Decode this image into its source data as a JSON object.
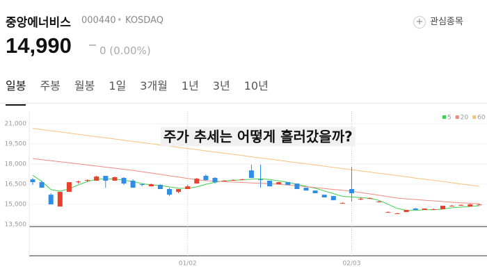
{
  "header": {
    "name": "중앙에너비스",
    "code": "000440",
    "market": "KOSDAQ",
    "watchlist": "관심종목",
    "price": "14,990",
    "change": "0 (0.00%)"
  },
  "tabs": [
    "일봉",
    "주봉",
    "월봉",
    "1일",
    "3개월",
    "1년",
    "3년",
    "10년"
  ],
  "chart_data": {
    "type": "candlestick",
    "annotation": "주가 추세는 어떻게 흘러갔을까?",
    "categories": [
      null,
      null,
      null,
      null,
      null,
      null,
      null,
      null,
      null,
      null,
      null,
      null,
      null,
      null,
      null,
      null,
      null,
      "01/02",
      null,
      null,
      null,
      null,
      null,
      null,
      null,
      null,
      null,
      null,
      null,
      null,
      null,
      null,
      null,
      null,
      null,
      "02/03",
      null,
      null,
      null,
      null,
      null,
      null,
      null,
      null,
      null,
      null,
      null,
      null,
      null,
      null
    ],
    "open": [
      16860,
      16650,
      15720,
      14840,
      15930,
      16650,
      16760,
      16760,
      17120,
      16760,
      16970,
      16760,
      16500,
      16340,
      16450,
      16140,
      15930,
      16140,
      16550,
      17120,
      16970,
      16760,
      16760,
      16860,
      17530,
      16860,
      16760,
      16500,
      16650,
      16550,
      16240,
      16030,
      15720,
      15620,
      15100,
      16140,
      15410,
      15460,
      15210,
      14430,
      14330,
      14430,
      14690,
      14590,
      14640,
      14640,
      14900,
      14950,
      14840,
      14990
    ],
    "high": [
      16970,
      16760,
      15830,
      15930,
      16650,
      16760,
      16860,
      17120,
      17120,
      17070,
      17020,
      16860,
      16550,
      16550,
      16500,
      16240,
      16140,
      16450,
      16970,
      17230,
      17020,
      16810,
      16860,
      16910,
      17950,
      17950,
      16760,
      16650,
      16650,
      16550,
      16240,
      16030,
      15720,
      15620,
      15150,
      17790,
      15520,
      15520,
      15260,
      14480,
      14380,
      14590,
      14740,
      14690,
      14690,
      14900,
      14950,
      15000,
      15050,
      15050
    ],
    "low": [
      16450,
      16240,
      15000,
      14840,
      15930,
      16550,
      16650,
      16760,
      16240,
      16760,
      16450,
      16240,
      16340,
      16340,
      16140,
      15620,
      15830,
      16140,
      16550,
      16760,
      16550,
      16700,
      16760,
      16810,
      16970,
      16240,
      16340,
      16500,
      16450,
      16140,
      16030,
      15830,
      15520,
      15310,
      15050,
      15210,
      15310,
      15410,
      15150,
      14380,
      14280,
      14430,
      14590,
      14590,
      14590,
      14640,
      14850,
      14900,
      14840,
      14950
    ],
    "close": [
      16650,
      16240,
      15000,
      15930,
      16650,
      16700,
      16810,
      17070,
      16760,
      17020,
      16550,
      16240,
      16450,
      16500,
      16140,
      15720,
      16140,
      16340,
      16910,
      16810,
      16650,
      16760,
      16810,
      16860,
      16970,
      16810,
      16340,
      16650,
      16450,
      16140,
      16030,
      15830,
      15520,
      15310,
      15100,
      15830,
      15410,
      15460,
      15210,
      14430,
      14330,
      14590,
      14590,
      14690,
      14640,
      14900,
      14900,
      14950,
      15000,
      14990
    ],
    "up_color": "#e8412c",
    "down_color": "#2f8de4",
    "series": [
      {
        "name": "5",
        "color": "#3ccf4e",
        "values": [
          17170,
          16700,
          16100,
          15980,
          16150,
          16450,
          16700,
          16860,
          16900,
          16880,
          16800,
          16700,
          16550,
          16450,
          16400,
          16300,
          16200,
          16200,
          16300,
          16500,
          16650,
          16750,
          16800,
          16830,
          16880,
          16900,
          16850,
          16750,
          16650,
          16500,
          16350,
          16200,
          16000,
          15800,
          15600,
          15550,
          15500,
          15450,
          15300,
          15000,
          14700,
          14550,
          14550,
          14600,
          14600,
          14650,
          14750,
          14800,
          14850,
          14900
        ]
      },
      {
        "name": "20",
        "color": "#f08a80",
        "values": [
          18410,
          18330,
          18250,
          18170,
          18090,
          18010,
          17930,
          17850,
          17770,
          17690,
          17610,
          17530,
          17430,
          17330,
          17230,
          17130,
          17030,
          16930,
          16840,
          16760,
          16730,
          16700,
          16660,
          16630,
          16600,
          16570,
          16540,
          16500,
          16440,
          16380,
          16310,
          16250,
          16180,
          16110,
          16050,
          15980,
          15880,
          15780,
          15680,
          15570,
          15470,
          15410,
          15360,
          15310,
          15260,
          15210,
          15160,
          15120,
          15080,
          15050
        ]
      },
      {
        "name": "60",
        "color": "#f7c27a",
        "values": [
          20650,
          20560,
          20470,
          20390,
          20300,
          20210,
          20120,
          20030,
          19950,
          19860,
          19770,
          19680,
          19600,
          19510,
          19420,
          19330,
          19240,
          19160,
          19070,
          18980,
          18890,
          18810,
          18720,
          18630,
          18540,
          18450,
          18370,
          18280,
          18190,
          18100,
          18020,
          17930,
          17840,
          17750,
          17660,
          17580,
          17490,
          17400,
          17310,
          17230,
          17140,
          17050,
          16960,
          16870,
          16790,
          16700,
          16610,
          16520,
          16430,
          16340
        ]
      }
    ],
    "ylim": [
      13350,
      21930
    ],
    "yticks": [
      {
        "value": 13500,
        "label": "13,500"
      },
      {
        "value": 15000,
        "label": "15,000"
      },
      {
        "value": 16500,
        "label": "16,500"
      },
      {
        "value": 18000,
        "label": "18,000"
      },
      {
        "value": 19500,
        "label": "19,500"
      },
      {
        "value": 21000,
        "label": "21,000"
      }
    ],
    "grid": true
  }
}
